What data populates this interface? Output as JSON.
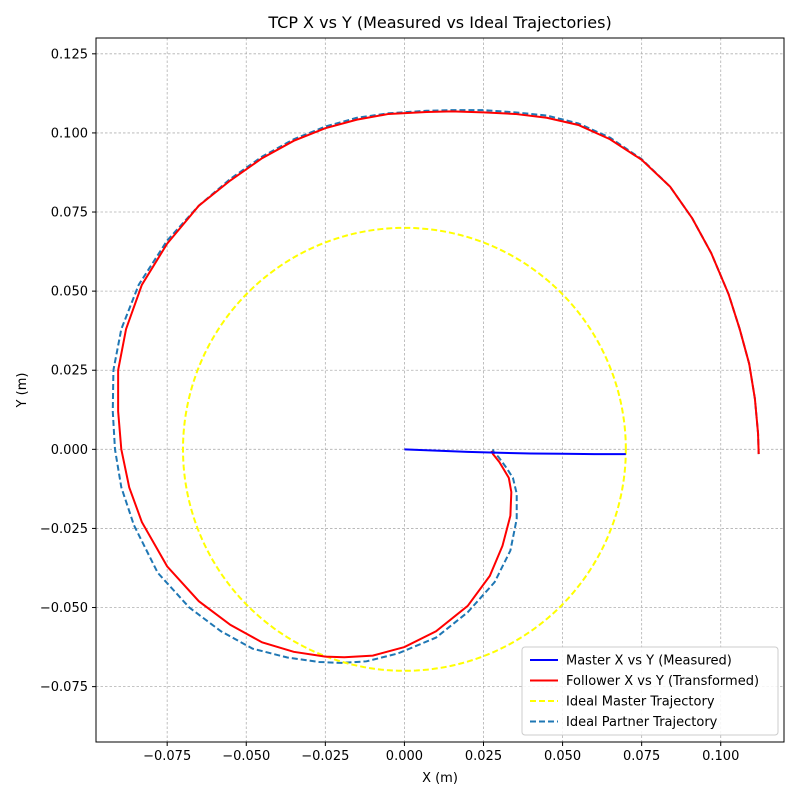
{
  "chart_data": {
    "type": "line",
    "title": "TCP X vs Y (Measured vs Ideal Trajectories)",
    "xlabel": "X (m)",
    "ylabel": "Y (m)",
    "xlim": [
      -0.0975,
      0.12
    ],
    "ylim": [
      -0.0925,
      0.13
    ],
    "xticks": [
      -0.075,
      -0.05,
      -0.025,
      0.0,
      0.025,
      0.05,
      0.075,
      0.1
    ],
    "xtick_labels": [
      "−0.075",
      "−0.050",
      "−0.025",
      "0.000",
      "0.025",
      "0.050",
      "0.075",
      "0.100"
    ],
    "yticks": [
      -0.075,
      -0.05,
      -0.025,
      0.0,
      0.025,
      0.05,
      0.075,
      0.1,
      0.125
    ],
    "ytick_labels": [
      "−0.075",
      "−0.050",
      "−0.025",
      "0.000",
      "0.025",
      "0.050",
      "0.075",
      "0.100",
      "0.125"
    ],
    "grid": true,
    "legend_position": "lower-right",
    "series": [
      {
        "name": "Master X vs Y (Measured)",
        "color": "#0000ff",
        "style": "solid",
        "x": [
          0.0,
          0.01,
          0.02,
          0.03,
          0.04,
          0.05,
          0.06,
          0.07
        ],
        "y": [
          0.0,
          -0.0004,
          -0.0008,
          -0.0011,
          -0.0013,
          -0.0014,
          -0.0015,
          -0.0015
        ]
      },
      {
        "name": "Follower X vs Y (Transformed)",
        "color": "#ff0000",
        "style": "solid",
        "x": [
          0.112,
          0.1118,
          0.1108,
          0.109,
          0.106,
          0.1025,
          0.097,
          0.091,
          0.084,
          0.075,
          0.065,
          0.055,
          0.045,
          0.035,
          0.025,
          0.015,
          0.007,
          -0.005,
          -0.015,
          -0.025,
          -0.035,
          -0.045,
          -0.055,
          -0.065,
          -0.075,
          -0.083,
          -0.088,
          -0.0905,
          -0.0905,
          -0.0895,
          -0.087,
          -0.083,
          -0.075,
          -0.065,
          -0.055,
          -0.045,
          -0.035,
          -0.025,
          -0.019,
          -0.01,
          0.0,
          0.01,
          0.02,
          0.027,
          0.031,
          0.0335,
          0.0338,
          0.033,
          0.0315,
          0.03,
          0.028,
          0.0275
        ],
        "y": [
          -0.0015,
          0.005,
          0.016,
          0.027,
          0.038,
          0.049,
          0.062,
          0.073,
          0.083,
          0.0915,
          0.098,
          0.1025,
          0.1048,
          0.106,
          0.1065,
          0.1068,
          0.1066,
          0.106,
          0.1042,
          0.1015,
          0.0975,
          0.092,
          0.085,
          0.077,
          0.065,
          0.052,
          0.038,
          0.025,
          0.012,
          0.0,
          -0.012,
          -0.023,
          -0.037,
          -0.048,
          -0.0555,
          -0.061,
          -0.064,
          -0.0655,
          -0.0657,
          -0.0652,
          -0.0625,
          -0.0575,
          -0.0495,
          -0.04,
          -0.0305,
          -0.021,
          -0.0135,
          -0.009,
          -0.0065,
          -0.004,
          -0.0015,
          -0.0005
        ]
      },
      {
        "name": "Ideal Master Trajectory",
        "color": "#ffff00",
        "style": "dashed",
        "shape": "circle",
        "center": [
          0.0,
          0.0
        ],
        "radius": 0.07
      },
      {
        "name": "Ideal Partner Trajectory",
        "color": "#1f77b4",
        "style": "dashed",
        "x": [
          0.112,
          0.1118,
          0.1108,
          0.109,
          0.106,
          0.1025,
          0.097,
          0.091,
          0.084,
          0.075,
          0.065,
          0.055,
          0.045,
          0.035,
          0.025,
          0.015,
          0.007,
          -0.005,
          -0.015,
          -0.025,
          -0.035,
          -0.045,
          -0.055,
          -0.065,
          -0.075,
          -0.084,
          -0.0895,
          -0.092,
          -0.0922,
          -0.0915,
          -0.0895,
          -0.0855,
          -0.078,
          -0.068,
          -0.058,
          -0.048,
          -0.037,
          -0.027,
          -0.02,
          -0.012,
          -0.002,
          0.01,
          0.02,
          0.0285,
          0.0335,
          0.0355,
          0.0355,
          0.0343,
          0.032,
          0.0298,
          0.0282,
          0.028
        ],
        "y": [
          -0.0015,
          0.005,
          0.016,
          0.027,
          0.038,
          0.049,
          0.062,
          0.073,
          0.083,
          0.0917,
          0.0985,
          0.103,
          0.1055,
          0.1065,
          0.1072,
          0.1072,
          0.107,
          0.1062,
          0.1048,
          0.102,
          0.098,
          0.0925,
          0.0855,
          0.077,
          0.066,
          0.052,
          0.038,
          0.025,
          0.012,
          0.0,
          -0.012,
          -0.024,
          -0.039,
          -0.05,
          -0.0575,
          -0.063,
          -0.0658,
          -0.0672,
          -0.0675,
          -0.067,
          -0.0645,
          -0.0595,
          -0.0515,
          -0.042,
          -0.032,
          -0.022,
          -0.014,
          -0.009,
          -0.0055,
          -0.0025,
          -0.0008,
          0.0
        ]
      }
    ]
  }
}
